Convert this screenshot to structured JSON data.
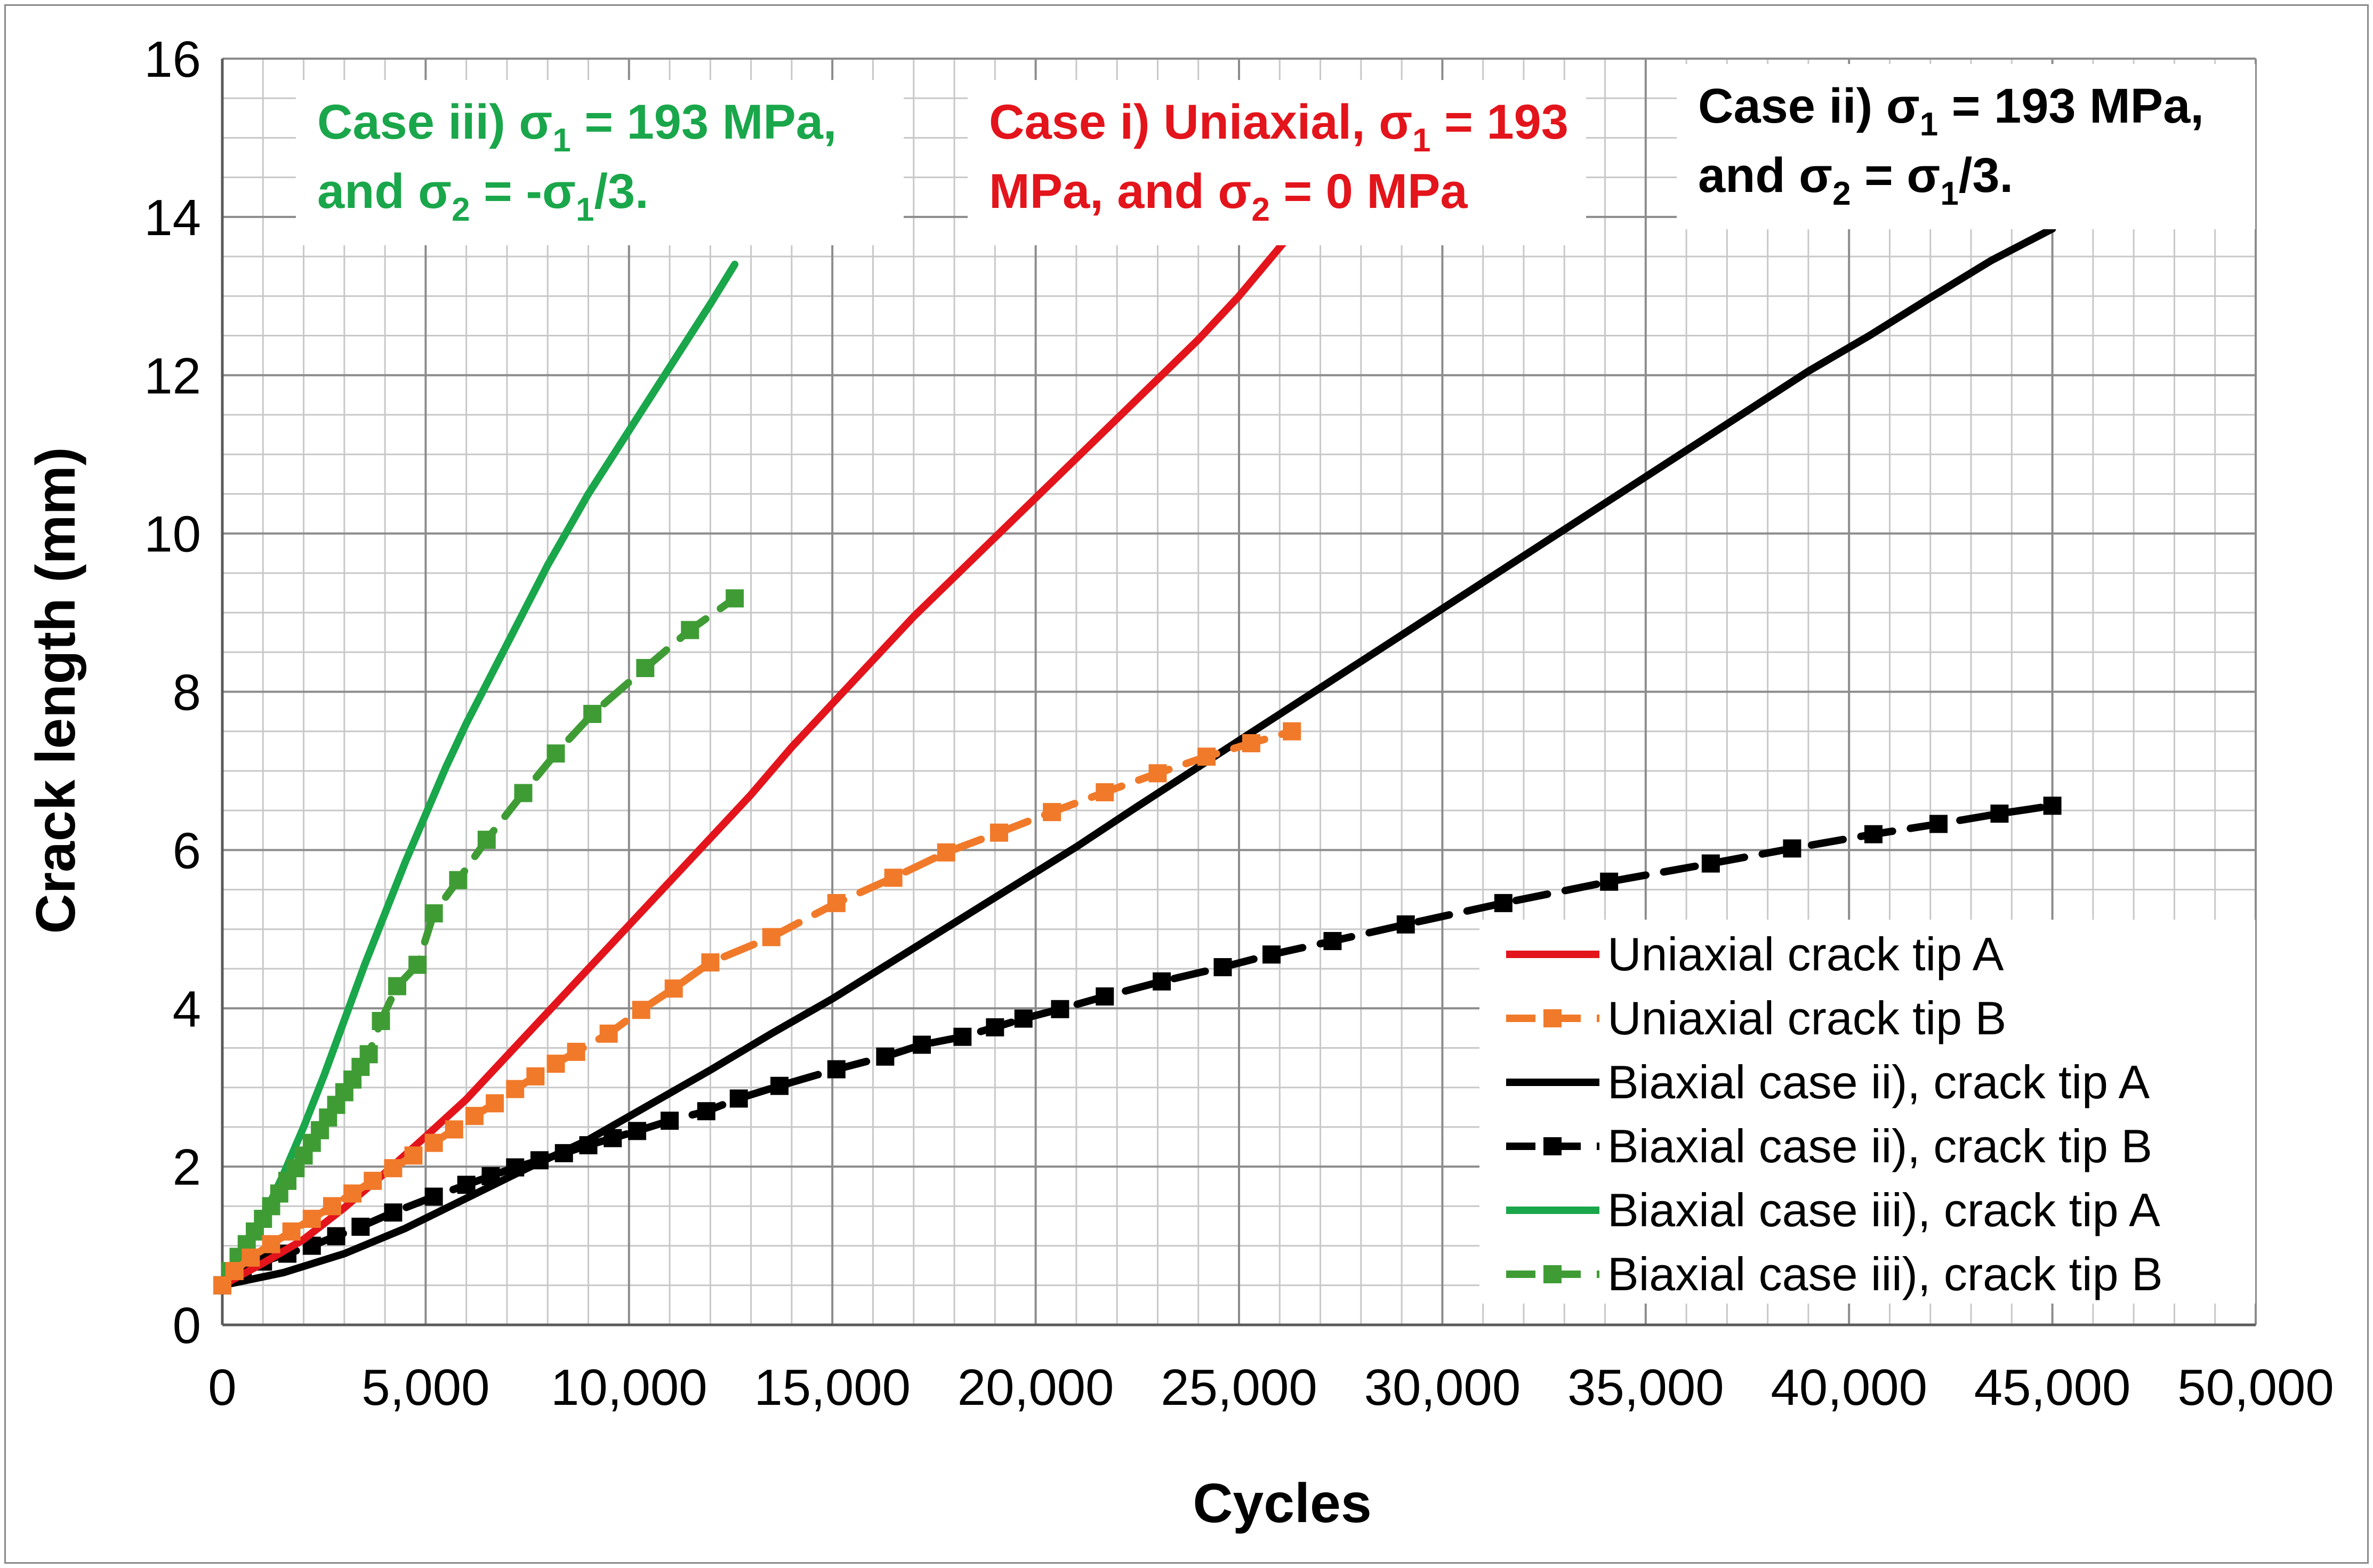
{
  "chart_data": {
    "type": "line",
    "title": "",
    "xlabel": "Cycles",
    "ylabel": "Crack length (mm)",
    "xlim": [
      0,
      50000
    ],
    "ylim": [
      0,
      16
    ],
    "x_ticks": [
      0,
      5000,
      10000,
      15000,
      20000,
      25000,
      30000,
      35000,
      40000,
      45000,
      50000
    ],
    "x_tick_labels": [
      "0",
      "5,000",
      "10,000",
      "15,000",
      "20,000",
      "25,000",
      "30,000",
      "35,000",
      "40,000",
      "45,000",
      "50,000"
    ],
    "y_ticks": [
      0,
      2,
      4,
      6,
      8,
      10,
      12,
      14,
      16
    ],
    "y_tick_labels": [
      "0",
      "2",
      "4",
      "6",
      "8",
      "10",
      "12",
      "14",
      "16"
    ],
    "grid": true,
    "legend_position": "bottom-right",
    "annotations": [
      {
        "id": "case3",
        "color": "#1aa64a",
        "position": "top-left",
        "lines": [
          [
            "Case iii)  σ",
            "1",
            " = 193 MPa,"
          ],
          [
            "and σ",
            "2",
            " = -σ",
            "1",
            "/3."
          ]
        ]
      },
      {
        "id": "case1",
        "color": "#e3141b",
        "position": "top-center",
        "lines": [
          [
            "Case i) Uniaxial, σ",
            "1",
            " = 193"
          ],
          [
            "MPa, and σ",
            "2",
            " = 0 MPa"
          ]
        ]
      },
      {
        "id": "case2",
        "color": "#000000",
        "position": "top-right",
        "lines": [
          [
            "Case ii)  σ",
            "1",
            " = 193 MPa,"
          ],
          [
            "and σ",
            "2",
            " = σ",
            "1",
            "/3."
          ]
        ]
      }
    ],
    "series": [
      {
        "name": "Uniaxial crack tip A",
        "color": "#e3141b",
        "style": "solid",
        "marker": "none",
        "x": [
          0,
          1000,
          2000,
          3000,
          4000,
          5000,
          6000,
          7000,
          8000,
          9000,
          10000,
          11000,
          12000,
          13000,
          14000,
          15000,
          16000,
          17000,
          18000,
          19000,
          20000,
          21000,
          22000,
          23000,
          24000,
          25000,
          26300
        ],
        "y": [
          0.5,
          0.78,
          1.08,
          1.48,
          1.92,
          2.38,
          2.85,
          3.4,
          3.95,
          4.5,
          5.05,
          5.6,
          6.15,
          6.7,
          7.3,
          7.85,
          8.4,
          8.95,
          9.45,
          9.95,
          10.45,
          10.95,
          11.45,
          11.95,
          12.45,
          13.0,
          13.8
        ]
      },
      {
        "name": "Uniaxial crack tip B",
        "color": "#f07a2a",
        "style": "dashed",
        "marker": "square",
        "x": [
          0,
          300,
          700,
          1200,
          1700,
          2200,
          2700,
          3200,
          3700,
          4200,
          4700,
          5200,
          5700,
          6200,
          6700,
          7200,
          7700,
          8200,
          8700,
          9500,
          10300,
          11100,
          12000,
          13500,
          15100,
          16500,
          17800,
          19100,
          20400,
          21700,
          23000,
          24200,
          25300,
          26300
        ],
        "y": [
          0.5,
          0.68,
          0.85,
          1.02,
          1.18,
          1.34,
          1.5,
          1.66,
          1.82,
          1.98,
          2.14,
          2.3,
          2.47,
          2.64,
          2.8,
          2.98,
          3.14,
          3.3,
          3.45,
          3.68,
          3.98,
          4.25,
          4.58,
          4.9,
          5.33,
          5.65,
          5.97,
          6.22,
          6.48,
          6.73,
          6.97,
          7.18,
          7.35,
          7.5
        ]
      },
      {
        "name": "Biaxial case ii), crack tip A",
        "color": "#000000",
        "style": "solid",
        "marker": "none",
        "x": [
          0,
          1500,
          3000,
          4500,
          6000,
          7500,
          9000,
          10500,
          12000,
          13500,
          15000,
          16500,
          18000,
          19500,
          21000,
          22500,
          24000,
          25500,
          27000,
          28500,
          30000,
          31500,
          33000,
          34500,
          36000,
          37500,
          39000,
          40500,
          42000,
          43500,
          45000
        ],
        "y": [
          0.5,
          0.66,
          0.9,
          1.22,
          1.6,
          1.98,
          2.34,
          2.78,
          3.22,
          3.68,
          4.12,
          4.6,
          5.08,
          5.56,
          6.04,
          6.55,
          7.05,
          7.55,
          8.05,
          8.55,
          9.05,
          9.55,
          10.05,
          10.55,
          11.05,
          11.55,
          12.05,
          12.5,
          12.98,
          13.45,
          13.85
        ]
      },
      {
        "name": "Biaxial case ii), crack tip B",
        "color": "#000000",
        "style": "dashed",
        "marker": "square",
        "x": [
          0,
          500,
          1000,
          1600,
          2200,
          2800,
          3400,
          4200,
          5200,
          6000,
          6600,
          7200,
          7800,
          8400,
          9000,
          9600,
          10200,
          11000,
          11900,
          12700,
          13700,
          15100,
          16300,
          17200,
          18200,
          19000,
          19700,
          20600,
          21700,
          23100,
          24600,
          25800,
          27300,
          29100,
          31500,
          34100,
          36600,
          38600,
          40600,
          42200,
          43700,
          45000
        ],
        "y": [
          0.5,
          0.66,
          0.8,
          0.9,
          1.0,
          1.12,
          1.24,
          1.42,
          1.62,
          1.77,
          1.88,
          1.99,
          2.08,
          2.17,
          2.27,
          2.36,
          2.45,
          2.58,
          2.7,
          2.86,
          3.02,
          3.23,
          3.39,
          3.54,
          3.64,
          3.76,
          3.87,
          3.99,
          4.15,
          4.34,
          4.52,
          4.68,
          4.85,
          5.06,
          5.33,
          5.6,
          5.83,
          6.02,
          6.2,
          6.33,
          6.46,
          6.56
        ]
      },
      {
        "name": "Biaxial case iii), crack tip A",
        "color": "#1aa64a",
        "style": "solid",
        "marker": "none",
        "x": [
          0,
          500,
          1000,
          1500,
          2000,
          2500,
          3000,
          3500,
          4000,
          4500,
          5000,
          5500,
          6000,
          6500,
          7000,
          7500,
          8000,
          8500,
          9000,
          9500,
          10000,
          10500,
          11000,
          11500,
          12000,
          12600
        ],
        "y": [
          0.5,
          0.9,
          1.35,
          1.9,
          2.5,
          3.15,
          3.85,
          4.55,
          5.2,
          5.85,
          6.45,
          7.05,
          7.6,
          8.1,
          8.6,
          9.1,
          9.6,
          10.05,
          10.5,
          10.9,
          11.3,
          11.7,
          12.1,
          12.5,
          12.9,
          13.4
        ]
      },
      {
        "name": "Biaxial case iii), crack tip B",
        "color": "#3f9c35",
        "style": "dashed",
        "marker": "square",
        "x": [
          0,
          200,
          400,
          600,
          800,
          1000,
          1200,
          1400,
          1600,
          1800,
          2000,
          2200,
          2400,
          2600,
          2800,
          3000,
          3200,
          3400,
          3600,
          3900,
          4300,
          4800,
          5200,
          5800,
          6500,
          7400,
          8200,
          9100,
          10400,
          11500,
          12600
        ],
        "y": [
          0.5,
          0.68,
          0.86,
          1.02,
          1.18,
          1.34,
          1.5,
          1.66,
          1.82,
          1.98,
          2.14,
          2.3,
          2.46,
          2.62,
          2.78,
          2.94,
          3.1,
          3.26,
          3.42,
          3.84,
          4.28,
          4.55,
          5.2,
          5.62,
          6.13,
          6.72,
          7.22,
          7.72,
          8.3,
          8.78,
          9.18
        ]
      }
    ]
  }
}
